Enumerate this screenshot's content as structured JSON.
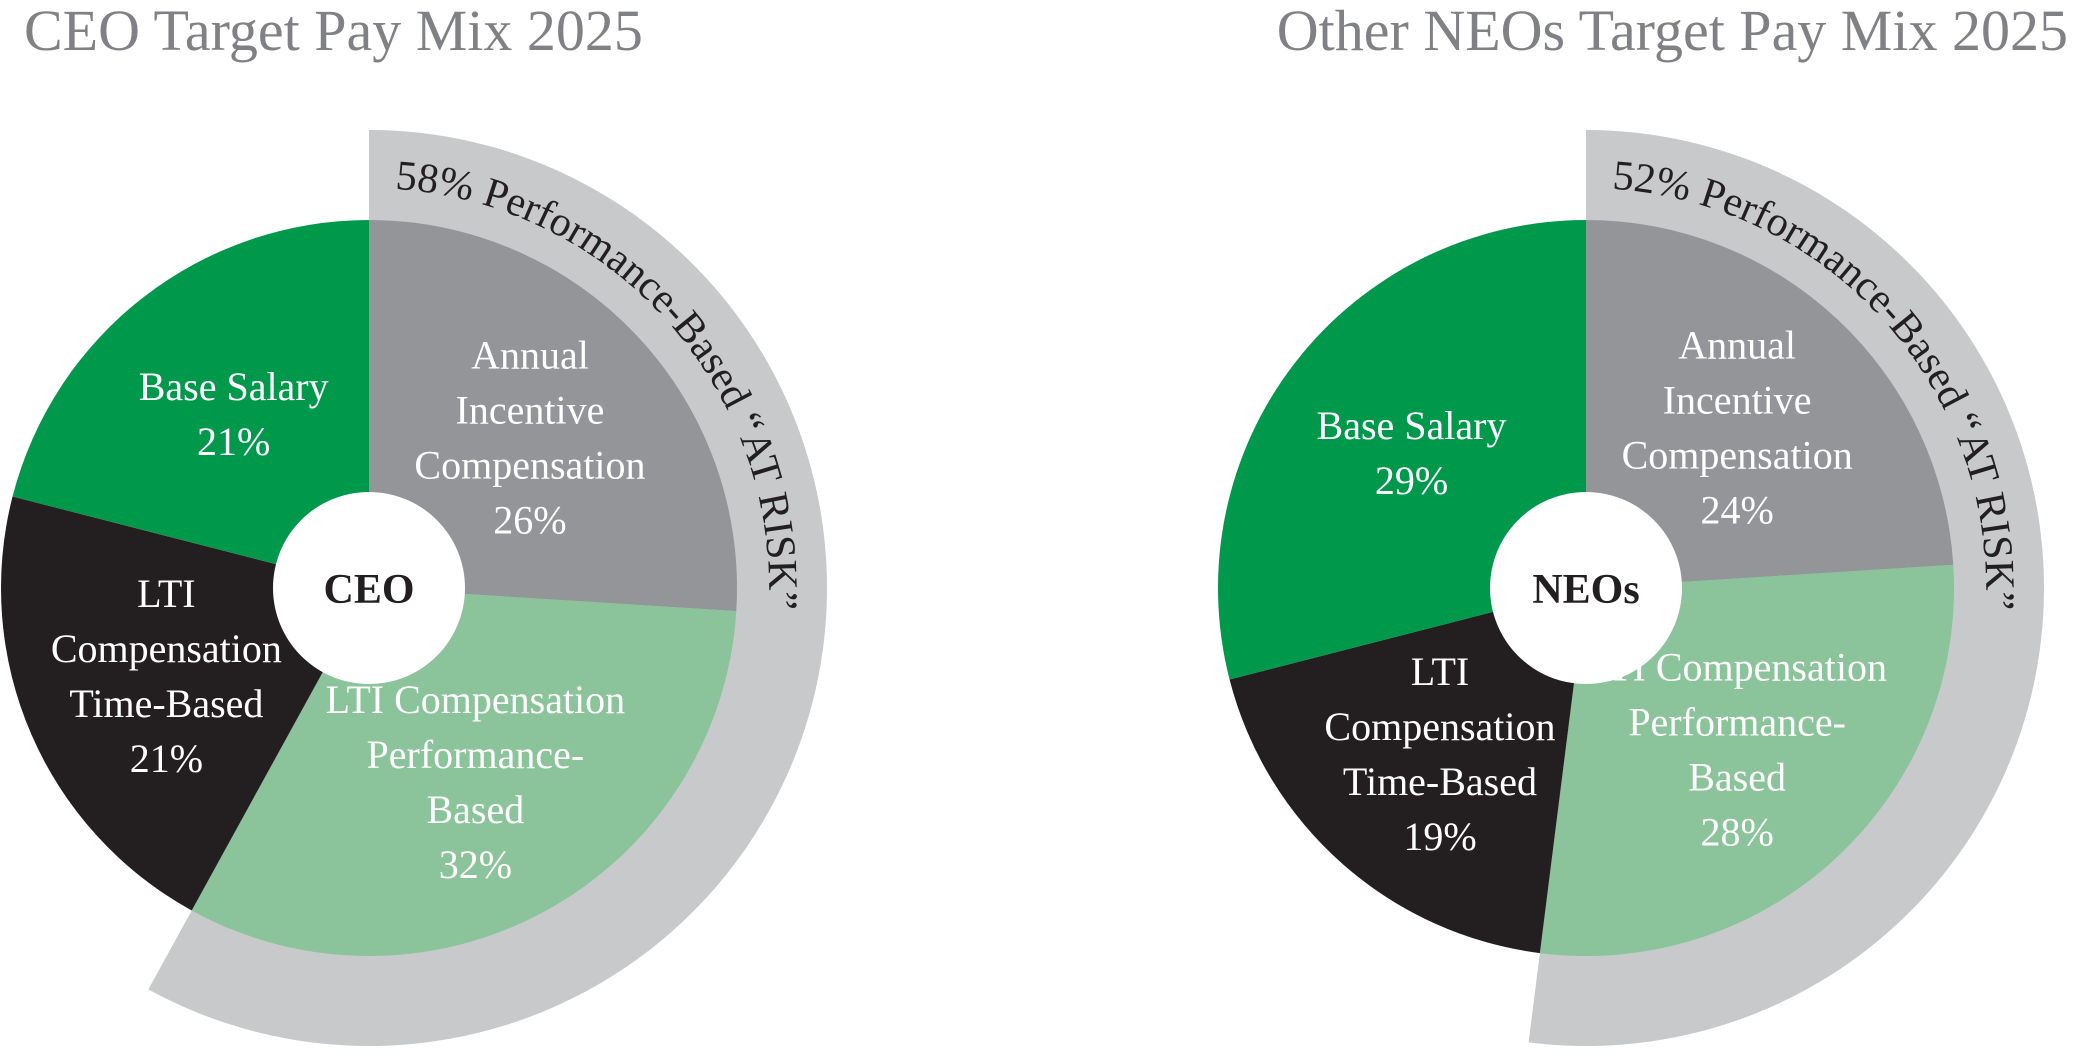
{
  "chart_data": [
    {
      "type": "pie",
      "title": "CEO Target Pay Mix 2025",
      "center_label": "CEO",
      "categories": [
        "Annual Incentive Compensation",
        "LTI Compensation Performance-Based",
        "LTI Compensation Time-Based",
        "Base Salary"
      ],
      "values": [
        26,
        32,
        21,
        21
      ],
      "value_labels": [
        "26%",
        "32%",
        "21%",
        "21%"
      ],
      "colors": [
        "#939598",
        "#8bc39a",
        "#231f20",
        "#00994c"
      ],
      "at_risk_value": 58,
      "at_risk_label": "58% Performance-Based “AT RISK”",
      "band_color": "#c8c9cb"
    },
    {
      "type": "pie",
      "title": "Other NEOs Target Pay Mix 2025",
      "center_label": "NEOs",
      "categories": [
        "Annual Incentive Compensation",
        "LTI Compensation Performance-Based",
        "LTI Compensation Time-Based",
        "Base Salary"
      ],
      "values": [
        24,
        28,
        19,
        29
      ],
      "value_labels": [
        "24%",
        "28%",
        "19%",
        "29%"
      ],
      "colors": [
        "#939598",
        "#8bc39a",
        "#231f20",
        "#00994c"
      ],
      "at_risk_value": 52,
      "at_risk_label": "52% Performance-Based “AT RISK”",
      "band_color": "#c8c9cb"
    }
  ]
}
